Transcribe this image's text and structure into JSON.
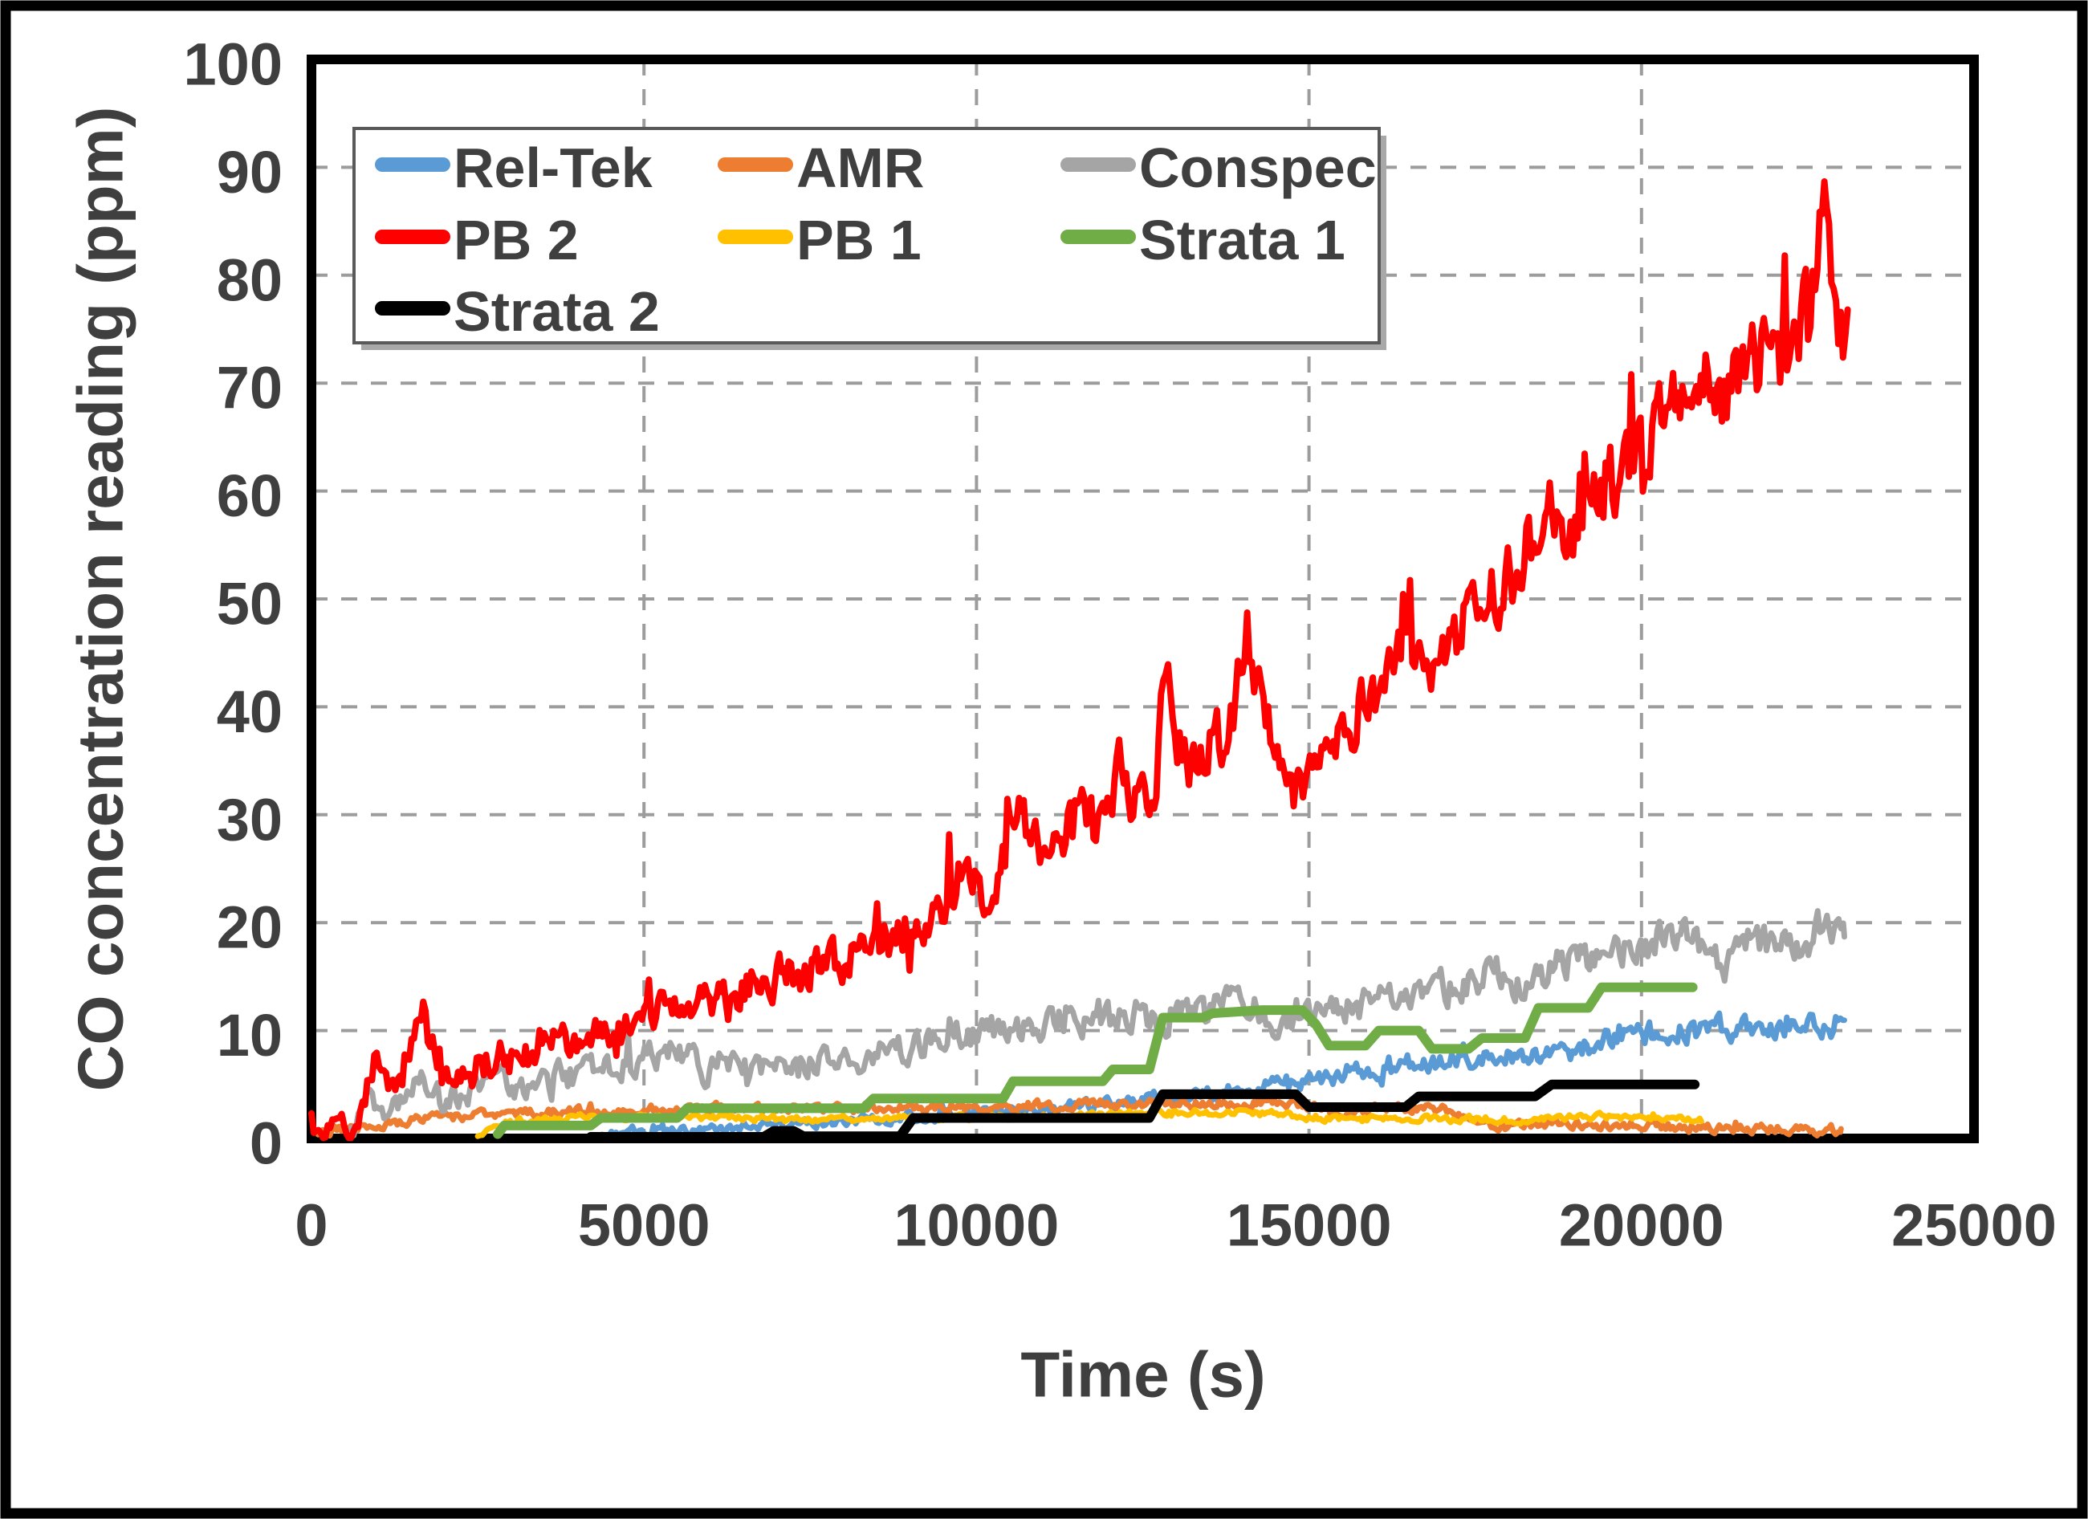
{
  "figure": {
    "background_color": "#ffffff",
    "frame_color": "#000000",
    "text_color": "#3f3f3f",
    "gridline_color": "#9c9c9c"
  },
  "chart_data": {
    "type": "line",
    "title": "",
    "xlabel": "Time (s)",
    "ylabel": "CO concentration reading (ppm)",
    "xlim": [
      0,
      25000
    ],
    "ylim": [
      0,
      100
    ],
    "x_ticks": [
      0,
      5000,
      10000,
      15000,
      20000,
      25000
    ],
    "y_ticks": [
      0,
      10,
      20,
      30,
      40,
      50,
      60,
      70,
      80,
      90,
      100
    ],
    "grid": true,
    "legend_position": "top-left-inside",
    "legend_columns": 3,
    "series": [
      {
        "name": "Rel-Tek",
        "color": "#5B9BD5",
        "style": "noisy",
        "noise_base": 0.3,
        "noise_scale": 0.07,
        "spike_p": 0.03,
        "spike_amp": 0.8,
        "spike_scale": 0,
        "anchors": [
          [
            4300,
            0.3
          ],
          [
            5000,
            0.6
          ],
          [
            6000,
            0.9
          ],
          [
            7000,
            1.2
          ],
          [
            8000,
            1.6
          ],
          [
            9000,
            2
          ],
          [
            10000,
            2.4
          ],
          [
            11000,
            2.8
          ],
          [
            12000,
            3.2
          ],
          [
            12800,
            3.7
          ],
          [
            13600,
            4.3
          ],
          [
            14400,
            4.8
          ],
          [
            15100,
            5.2
          ],
          [
            15700,
            5.9
          ],
          [
            16200,
            6.6
          ],
          [
            16700,
            7.1
          ],
          [
            17200,
            7.2
          ],
          [
            17700,
            7.5
          ],
          [
            18200,
            7.8
          ],
          [
            18700,
            7.9
          ],
          [
            19100,
            8.3
          ],
          [
            19400,
            9.2
          ],
          [
            19900,
            9.5
          ],
          [
            20400,
            9.8
          ],
          [
            20900,
            10.1
          ],
          [
            21400,
            10.3
          ],
          [
            22000,
            10.6
          ],
          [
            22500,
            10.9
          ],
          [
            23050,
            10.3
          ]
        ]
      },
      {
        "name": "AMR",
        "color": "#ED7D31",
        "style": "noisy",
        "noise_base": 0.4,
        "noise_scale": 0,
        "spike_p": 0.02,
        "spike_amp": 0.5,
        "spike_scale": 0,
        "anchors": [
          [
            100,
            0.3
          ],
          [
            350,
            0.8
          ],
          [
            700,
            1.1
          ],
          [
            1200,
            1.5
          ],
          [
            1700,
            1.9
          ],
          [
            2300,
            2.1
          ],
          [
            3100,
            2.3
          ],
          [
            4100,
            2.5
          ],
          [
            5100,
            2.7
          ],
          [
            6100,
            2.8
          ],
          [
            7100,
            2.7
          ],
          [
            8100,
            2.8
          ],
          [
            9100,
            2.9
          ],
          [
            10100,
            3
          ],
          [
            11100,
            3.1
          ],
          [
            11700,
            3.3
          ],
          [
            12300,
            3.1
          ],
          [
            13000,
            3.3
          ],
          [
            13700,
            3.2
          ],
          [
            14300,
            3.4
          ],
          [
            15000,
            3
          ],
          [
            15400,
            2.4
          ],
          [
            16000,
            2.7
          ],
          [
            16600,
            2.9
          ],
          [
            17100,
            2.6
          ],
          [
            17500,
            1.4
          ],
          [
            18000,
            1.2
          ],
          [
            18600,
            1.4
          ],
          [
            19200,
            1.2
          ],
          [
            20000,
            1.2
          ],
          [
            21000,
            1
          ],
          [
            22000,
            0.9
          ],
          [
            23000,
            0.8
          ]
        ]
      },
      {
        "name": "Conspec",
        "color": "#A5A5A5",
        "style": "noisy",
        "noise_base": 1.1,
        "noise_scale": 0.02,
        "spike_p": 0.04,
        "spike_amp": 1.5,
        "spike_scale": 0,
        "anchors": [
          [
            600,
            0.2
          ],
          [
            850,
            2.6
          ],
          [
            1000,
            3.3
          ],
          [
            1200,
            2.7
          ],
          [
            1450,
            4.3
          ],
          [
            1700,
            5
          ],
          [
            1950,
            3.5
          ],
          [
            2250,
            4.3
          ],
          [
            2550,
            5.2
          ],
          [
            2850,
            5.8
          ],
          [
            3150,
            4.8
          ],
          [
            3500,
            5.3
          ],
          [
            3900,
            5.8
          ],
          [
            4300,
            6.3
          ],
          [
            4700,
            6.9
          ],
          [
            5000,
            7.4
          ],
          [
            5300,
            8
          ],
          [
            5700,
            7.1
          ],
          [
            6100,
            6.1
          ],
          [
            6600,
            6.5
          ],
          [
            7100,
            6.3
          ],
          [
            7600,
            6.9
          ],
          [
            8100,
            7.5
          ],
          [
            8600,
            8.1
          ],
          [
            9100,
            8.7
          ],
          [
            9600,
            9.4
          ],
          [
            10100,
            9.9
          ],
          [
            10600,
            10.4
          ],
          [
            11100,
            10.8
          ],
          [
            11600,
            11.2
          ],
          [
            12000,
            10.8
          ],
          [
            12400,
            11.5
          ],
          [
            12800,
            11.1
          ],
          [
            13200,
            11.9
          ],
          [
            13700,
            12.3
          ],
          [
            14200,
            12.6
          ],
          [
            14650,
            10.6
          ],
          [
            15000,
            11.6
          ],
          [
            15500,
            12.1
          ],
          [
            16000,
            12.7
          ],
          [
            16500,
            13.3
          ],
          [
            17000,
            13.9
          ],
          [
            17400,
            14.6
          ],
          [
            17900,
            15.4
          ],
          [
            18250,
            14.1
          ],
          [
            18650,
            15.9
          ],
          [
            19000,
            16.3
          ],
          [
            19500,
            17.1
          ],
          [
            20000,
            18
          ],
          [
            20400,
            18.9
          ],
          [
            20700,
            19.4
          ],
          [
            21000,
            17.6
          ],
          [
            21300,
            16
          ],
          [
            21600,
            18.3
          ],
          [
            21900,
            18
          ],
          [
            22200,
            19.3
          ],
          [
            22450,
            17.2
          ],
          [
            22700,
            20
          ],
          [
            23050,
            19.8
          ]
        ]
      },
      {
        "name": "PB 2",
        "color": "#FF0000",
        "style": "noisy",
        "noise_base": 1.2,
        "noise_scale": 0.035,
        "spike_p": 0.05,
        "spike_amp": 2,
        "spike_scale": 0.06,
        "anchors": [
          [
            0,
            0.3
          ],
          [
            550,
            0.3
          ],
          [
            700,
            1
          ],
          [
            850,
            5
          ],
          [
            1000,
            8.2
          ],
          [
            1100,
            6
          ],
          [
            1200,
            4.4
          ],
          [
            1350,
            6
          ],
          [
            1500,
            9
          ],
          [
            1650,
            12.6
          ],
          [
            1800,
            9.5
          ],
          [
            1950,
            6
          ],
          [
            2150,
            5.6
          ],
          [
            2400,
            6.3
          ],
          [
            2700,
            7
          ],
          [
            3100,
            7.8
          ],
          [
            3600,
            8.6
          ],
          [
            4100,
            9.3
          ],
          [
            4600,
            10
          ],
          [
            5000,
            11
          ],
          [
            5200,
            12
          ],
          [
            5350,
            14
          ],
          [
            5500,
            12.3
          ],
          [
            5700,
            12
          ],
          [
            6000,
            13.2
          ],
          [
            6300,
            12.6
          ],
          [
            6600,
            14
          ],
          [
            6900,
            15.2
          ],
          [
            7200,
            15
          ],
          [
            7500,
            15.8
          ],
          [
            7800,
            16
          ],
          [
            8100,
            16.8
          ],
          [
            8400,
            17.5
          ],
          [
            8700,
            18.3
          ],
          [
            9000,
            19
          ],
          [
            9300,
            20
          ],
          [
            9600,
            22.5
          ],
          [
            9850,
            26
          ],
          [
            10050,
            23.5
          ],
          [
            10200,
            21.8
          ],
          [
            10400,
            25
          ],
          [
            10600,
            31
          ],
          [
            10750,
            27.5
          ],
          [
            11000,
            26.8
          ],
          [
            11300,
            28.5
          ],
          [
            11600,
            30.5
          ],
          [
            11800,
            27.5
          ],
          [
            12000,
            29.5
          ],
          [
            12150,
            33.5
          ],
          [
            12300,
            30.5
          ],
          [
            12500,
            32
          ],
          [
            12700,
            34
          ],
          [
            12850,
            43
          ],
          [
            13000,
            37
          ],
          [
            13200,
            34
          ],
          [
            13500,
            36
          ],
          [
            13800,
            38.5
          ],
          [
            14050,
            48
          ],
          [
            14200,
            43.5
          ],
          [
            14400,
            38
          ],
          [
            14700,
            34.5
          ],
          [
            15000,
            34
          ],
          [
            15200,
            35.5
          ],
          [
            15500,
            38
          ],
          [
            15800,
            40
          ],
          [
            16100,
            42
          ],
          [
            16400,
            44.5
          ],
          [
            16600,
            43
          ],
          [
            16900,
            45.5
          ],
          [
            17200,
            47
          ],
          [
            17500,
            49
          ],
          [
            17800,
            51
          ],
          [
            18100,
            53
          ],
          [
            18400,
            55.5
          ],
          [
            18600,
            59
          ],
          [
            18800,
            57.5
          ],
          [
            19000,
            56.5
          ],
          [
            19300,
            58.5
          ],
          [
            19600,
            61
          ],
          [
            19900,
            63
          ],
          [
            20200,
            64.5
          ],
          [
            20500,
            66.5
          ],
          [
            20700,
            69.5
          ],
          [
            20900,
            71
          ],
          [
            21100,
            68.5
          ],
          [
            21400,
            70
          ],
          [
            21700,
            72.5
          ],
          [
            22000,
            74.5
          ],
          [
            22200,
            72
          ],
          [
            22400,
            74
          ],
          [
            22550,
            78
          ],
          [
            22650,
            85
          ],
          [
            22750,
            90.5
          ],
          [
            22850,
            80
          ],
          [
            22950,
            72.5
          ],
          [
            23100,
            75
          ]
        ]
      },
      {
        "name": "PB 1",
        "color": "#FFC000",
        "style": "noisy",
        "noise_base": 0.28,
        "noise_scale": 0,
        "spike_p": 0.02,
        "spike_amp": 0.4,
        "spike_scale": 0,
        "anchors": [
          [
            2500,
            0.2
          ],
          [
            2750,
            1.3
          ],
          [
            3300,
            1.7
          ],
          [
            4100,
            1.9
          ],
          [
            5100,
            2
          ],
          [
            6100,
            1.9
          ],
          [
            7100,
            1.8
          ],
          [
            8100,
            1.8
          ],
          [
            9100,
            1.9
          ],
          [
            10100,
            2
          ],
          [
            11100,
            2.1
          ],
          [
            12100,
            2.2
          ],
          [
            12900,
            2.4
          ],
          [
            13700,
            2.4
          ],
          [
            14500,
            2.2
          ],
          [
            15300,
            1.9
          ],
          [
            16100,
            1.8
          ],
          [
            17100,
            1.8
          ],
          [
            18100,
            1.8
          ],
          [
            19100,
            2
          ],
          [
            20100,
            2
          ],
          [
            20900,
            1.9
          ]
        ]
      },
      {
        "name": "Strata 1",
        "color": "#70AD47",
        "style": "step",
        "anchors": [
          [
            2800,
            0.4
          ],
          [
            2900,
            1.2
          ],
          [
            4200,
            1.2
          ],
          [
            4350,
            1.9
          ],
          [
            5500,
            1.9
          ],
          [
            5650,
            2.8
          ],
          [
            8300,
            2.8
          ],
          [
            8450,
            3.7
          ],
          [
            10400,
            3.7
          ],
          [
            10550,
            5.3
          ],
          [
            11900,
            5.3
          ],
          [
            12050,
            6.4
          ],
          [
            12600,
            6.4
          ],
          [
            12800,
            11.2
          ],
          [
            13400,
            11.2
          ],
          [
            13550,
            11.6
          ],
          [
            14300,
            11.9
          ],
          [
            14900,
            11.9
          ],
          [
            15100,
            10.6
          ],
          [
            15300,
            8.6
          ],
          [
            15850,
            8.6
          ],
          [
            16050,
            10
          ],
          [
            16650,
            10
          ],
          [
            16850,
            8.3
          ],
          [
            17400,
            8.3
          ],
          [
            17600,
            9.3
          ],
          [
            18250,
            9.3
          ],
          [
            18450,
            12.1
          ],
          [
            19200,
            12.1
          ],
          [
            19400,
            14
          ],
          [
            20770,
            14
          ]
        ]
      },
      {
        "name": "Strata 2",
        "color": "#000000",
        "style": "step",
        "anchors": [
          [
            4200,
            0.15
          ],
          [
            6800,
            0.15
          ],
          [
            6950,
            0.7
          ],
          [
            7250,
            0.7
          ],
          [
            7400,
            0.2
          ],
          [
            8850,
            0.2
          ],
          [
            9050,
            1.9
          ],
          [
            12600,
            1.9
          ],
          [
            12800,
            4.1
          ],
          [
            14800,
            4.1
          ],
          [
            15000,
            2.9
          ],
          [
            16450,
            2.9
          ],
          [
            16650,
            3.9
          ],
          [
            18400,
            3.9
          ],
          [
            18650,
            5
          ],
          [
            20800,
            5
          ]
        ]
      }
    ]
  }
}
